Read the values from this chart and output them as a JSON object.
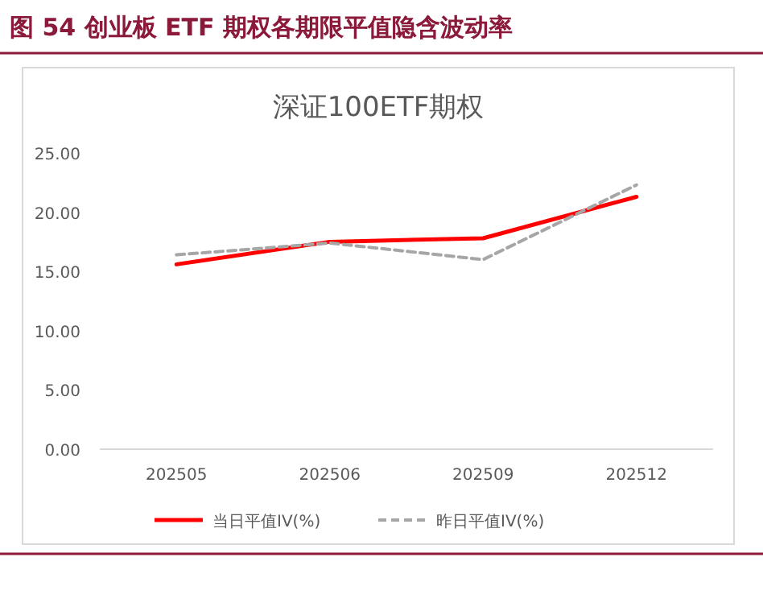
{
  "chart_data": {
    "type": "line",
    "title": "图 54  创业板 ETF 期权各期限平值隐含波动率",
    "subtitle": "深证100ETF期权",
    "categories": [
      "202505",
      "202506",
      "202509",
      "202512"
    ],
    "series": [
      {
        "name": "当日平值IV(%)",
        "color": "#ff0000",
        "values": [
          15.6,
          17.5,
          17.8,
          21.3
        ],
        "line_style": "solid"
      },
      {
        "name": "昨日平值IV(%)",
        "color": "#a6a6a6",
        "values": [
          16.4,
          17.4,
          16.0,
          22.3
        ],
        "line_style": "dashed"
      }
    ],
    "ylim": [
      0,
      25
    ],
    "yticks": [
      {
        "value": 0,
        "label": "0.00"
      },
      {
        "value": 5,
        "label": "5.00"
      },
      {
        "value": 10,
        "label": "10.00"
      },
      {
        "value": 15,
        "label": "15.00"
      },
      {
        "value": 20,
        "label": "20.00"
      },
      {
        "value": 25,
        "label": "25.00"
      }
    ],
    "grid": false,
    "legend": "bottom",
    "marker": "none"
  }
}
